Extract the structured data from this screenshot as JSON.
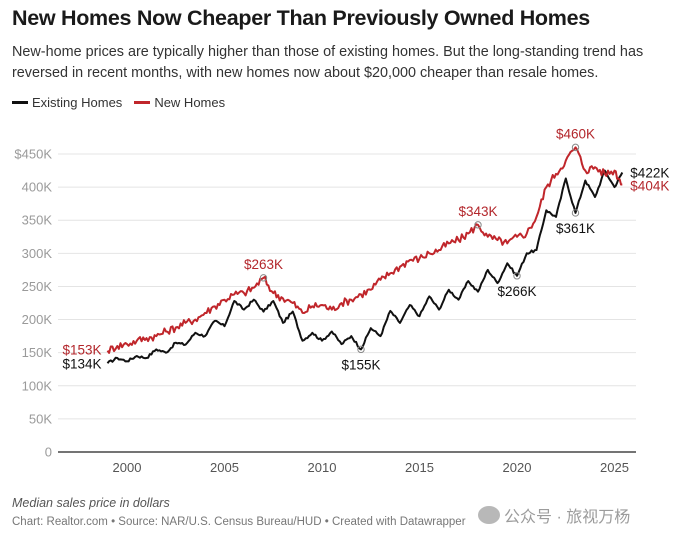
{
  "title": "New Homes Now Cheaper Than Previously Owned Homes",
  "subtitle": "New-home prices are typically higher than those of existing homes. But the long-standing trend has reversed in recent months, with new homes now about $20,000 cheaper than resale homes.",
  "legend": [
    {
      "label": "Existing Homes",
      "color": "#111111"
    },
    {
      "label": "New Homes",
      "color": "#c0262b"
    }
  ],
  "note": "Median sales price in dollars",
  "credit": "Chart: Realtor.com • Source: NAR/U.S. Census Bureau/HUD • Created with Datawrapper",
  "watermark": "公众号 · 旅视万杨",
  "chart_data": {
    "type": "line",
    "title": "New Homes Now Cheaper Than Previously Owned Homes",
    "xlabel": "",
    "ylabel": "Median sales price in dollars",
    "xlim": [
      1996.5,
      2026
    ],
    "ylim": [
      0,
      450000
    ],
    "grid": true,
    "legend_position": "top-left",
    "y_ticks": [
      {
        "value": 0,
        "label": "0"
      },
      {
        "value": 50000,
        "label": "50K"
      },
      {
        "value": 100000,
        "label": "100K"
      },
      {
        "value": 150000,
        "label": "150K"
      },
      {
        "value": 200000,
        "label": "200K"
      },
      {
        "value": 250000,
        "label": "250K"
      },
      {
        "value": 300000,
        "label": "300K"
      },
      {
        "value": 350000,
        "label": "350K"
      },
      {
        "value": 400000,
        "label": "400K"
      },
      {
        "value": 450000,
        "label": "$450K"
      }
    ],
    "x_ticks": [
      {
        "value": 2000,
        "label": "2000"
      },
      {
        "value": 2005,
        "label": "2005"
      },
      {
        "value": 2010,
        "label": "2010"
      },
      {
        "value": 2015,
        "label": "2015"
      },
      {
        "value": 2020,
        "label": "2020"
      },
      {
        "value": 2025,
        "label": "2025"
      }
    ],
    "series": [
      {
        "name": "Existing Homes",
        "color": "#111111",
        "x": [
          1999.0,
          1999.5,
          2000.0,
          2000.5,
          2001.0,
          2001.5,
          2002.0,
          2002.5,
          2003.0,
          2003.5,
          2004.0,
          2004.5,
          2005.0,
          2005.5,
          2006.0,
          2006.5,
          2007.0,
          2007.5,
          2008.0,
          2008.5,
          2009.0,
          2009.5,
          2010.0,
          2010.5,
          2011.0,
          2011.5,
          2012.0,
          2012.5,
          2013.0,
          2013.5,
          2014.0,
          2014.5,
          2015.0,
          2015.5,
          2016.0,
          2016.5,
          2017.0,
          2017.5,
          2018.0,
          2018.5,
          2019.0,
          2019.5,
          2020.0,
          2020.5,
          2021.0,
          2021.5,
          2022.0,
          2022.5,
          2023.0,
          2023.5,
          2024.0,
          2024.5,
          2025.0,
          2025.4
        ],
        "values": [
          134000,
          142000,
          137000,
          145000,
          142000,
          155000,
          150000,
          165000,
          162000,
          180000,
          175000,
          198000,
          190000,
          228000,
          215000,
          230000,
          212000,
          228000,
          195000,
          212000,
          168000,
          180000,
          168000,
          182000,
          163000,
          175000,
          155000,
          187000,
          175000,
          213000,
          195000,
          222000,
          205000,
          235000,
          215000,
          245000,
          230000,
          258000,
          242000,
          275000,
          255000,
          285000,
          266000,
          300000,
          305000,
          365000,
          355000,
          413000,
          361000,
          410000,
          385000,
          425000,
          400000,
          422000
        ]
      },
      {
        "name": "New Homes",
        "color": "#c0262b",
        "x": [
          1999.0,
          1999.5,
          2000.0,
          2000.5,
          2001.0,
          2001.5,
          2002.0,
          2002.5,
          2003.0,
          2003.5,
          2004.0,
          2004.5,
          2005.0,
          2005.5,
          2006.0,
          2006.5,
          2007.0,
          2007.5,
          2008.0,
          2008.5,
          2009.0,
          2009.5,
          2010.0,
          2010.5,
          2011.0,
          2011.5,
          2012.0,
          2012.5,
          2013.0,
          2013.5,
          2014.0,
          2014.5,
          2015.0,
          2015.5,
          2016.0,
          2016.5,
          2017.0,
          2017.5,
          2018.0,
          2018.5,
          2019.0,
          2019.5,
          2020.0,
          2020.5,
          2021.0,
          2021.5,
          2022.0,
          2022.5,
          2023.0,
          2023.5,
          2024.0,
          2024.5,
          2025.0,
          2025.4
        ],
        "values": [
          153000,
          160000,
          163000,
          168000,
          172000,
          175000,
          182000,
          188000,
          195000,
          200000,
          210000,
          220000,
          230000,
          238000,
          240000,
          248000,
          263000,
          240000,
          232000,
          225000,
          210000,
          220000,
          222000,
          215000,
          225000,
          230000,
          238000,
          245000,
          260000,
          270000,
          280000,
          290000,
          292000,
          300000,
          305000,
          315000,
          320000,
          330000,
          343000,
          325000,
          320000,
          315000,
          325000,
          330000,
          355000,
          400000,
          420000,
          440000,
          460000,
          425000,
          430000,
          420000,
          425000,
          404000
        ]
      }
    ],
    "annotations": [
      {
        "series": "New Homes",
        "x": 1999.0,
        "value": 153000,
        "label": "$153K",
        "marker": false
      },
      {
        "series": "Existing Homes",
        "x": 1999.0,
        "value": 134000,
        "label": "$134K",
        "marker": false
      },
      {
        "series": "New Homes",
        "x": 2007.0,
        "value": 263000,
        "label": "$263K",
        "marker": true
      },
      {
        "series": "Existing Homes",
        "x": 2012.0,
        "value": 155000,
        "label": "$155K",
        "marker": true
      },
      {
        "series": "New Homes",
        "x": 2018.0,
        "value": 343000,
        "label": "$343K",
        "marker": true
      },
      {
        "series": "Existing Homes",
        "x": 2020.0,
        "value": 266000,
        "label": "$266K",
        "marker": true
      },
      {
        "series": "New Homes",
        "x": 2023.0,
        "value": 460000,
        "label": "$460K",
        "marker": true
      },
      {
        "series": "Existing Homes",
        "x": 2023.0,
        "value": 361000,
        "label": "$361K",
        "marker": true
      },
      {
        "series": "Existing Homes",
        "x": 2025.4,
        "value": 422000,
        "label": "$422K",
        "marker": false
      },
      {
        "series": "New Homes",
        "x": 2025.4,
        "value": 404000,
        "label": "$404K",
        "marker": false
      }
    ]
  }
}
